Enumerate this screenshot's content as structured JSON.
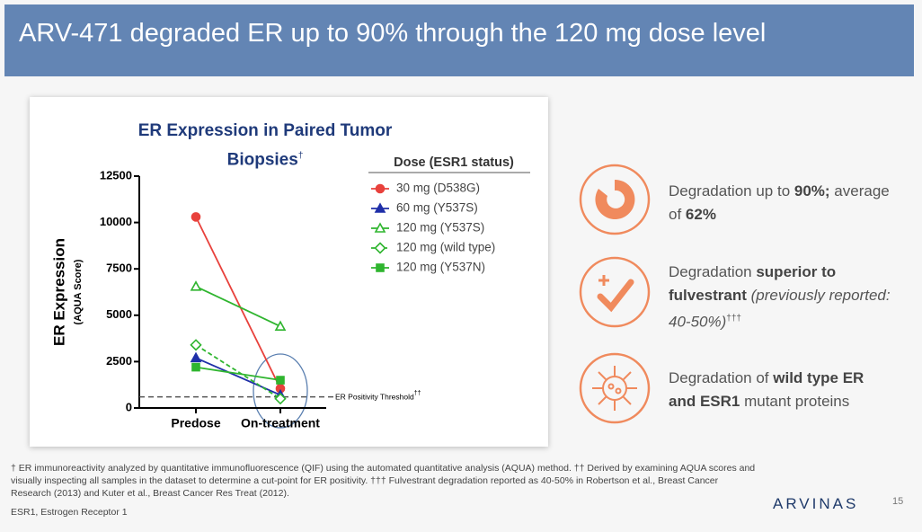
{
  "slide_title": "ARV-471 degraded ER up to 90% through the 120 mg dose level",
  "chart_data": {
    "type": "line",
    "title": "ER Expression in Paired Tumor Biopsies",
    "title_note": "†",
    "y_label": "ER Expression",
    "y_sublabel": "(AQUA Score)",
    "legend_title": "Dose (ESR1 status)",
    "categories": [
      "Predose",
      "On-treatment"
    ],
    "series": [
      {
        "name": "30 mg (D538G)",
        "color": "#e8413c",
        "marker": "circle",
        "dashed": false,
        "values": [
          10300,
          1050
        ]
      },
      {
        "name": "60 mg (Y537S)",
        "color": "#1f2fa8",
        "marker": "triangle",
        "dashed": false,
        "values": [
          2700,
          700
        ]
      },
      {
        "name": "120 mg (Y537S)",
        "color": "#2fb52f",
        "marker": "triangle-open",
        "dashed": false,
        "values": [
          6550,
          4400
        ]
      },
      {
        "name": "120 mg (wild type)",
        "color": "#2fb52f",
        "marker": "diamond-open",
        "dashed": true,
        "values": [
          3400,
          500
        ]
      },
      {
        "name": "120 mg (Y537N)",
        "color": "#2fb52f",
        "marker": "square",
        "dashed": false,
        "values": [
          2200,
          1500
        ]
      }
    ],
    "ylim": [
      0,
      12500
    ],
    "yticks": [
      0,
      2500,
      5000,
      7500,
      10000,
      12500
    ],
    "threshold": {
      "value": 600,
      "label": "ER Positivity Threshold",
      "note": "††"
    }
  },
  "callouts": [
    {
      "parts": [
        {
          "text": "Degradation up to "
        },
        {
          "text": "90%;",
          "bold": true
        },
        {
          "text": " average of "
        },
        {
          "text": "62%",
          "bold": true
        }
      ]
    },
    {
      "parts": [
        {
          "text": "Degradation "
        },
        {
          "text": "superior to fulvestrant",
          "bold": true
        },
        {
          "text": " (previously reported: 40-50%)",
          "italic": true
        },
        {
          "text": "†††",
          "sup": true
        }
      ]
    },
    {
      "parts": [
        {
          "text": "Degradation of "
        },
        {
          "text": "wild type ER and ESR1",
          "bold": true
        },
        {
          "text": " mutant proteins"
        }
      ]
    }
  ],
  "footnote": "† ER immunoreactivity analyzed by quantitative immunofluorescence (QIF) using the automated quantitative analysis (AQUA) method. †† Derived by examining AQUA scores and visually inspecting all samples in the dataset to determine a cut-point for ER positivity. ††† Fulvestrant degradation reported as 40-50% in Robertson et al., Breast Cancer Research (2013) and Kuter et al., Breast Cancer Res Treat (2012).",
  "abbreviation": "ESR1, Estrogen Receptor 1",
  "logo": "ARVINAS",
  "page_number": "15"
}
